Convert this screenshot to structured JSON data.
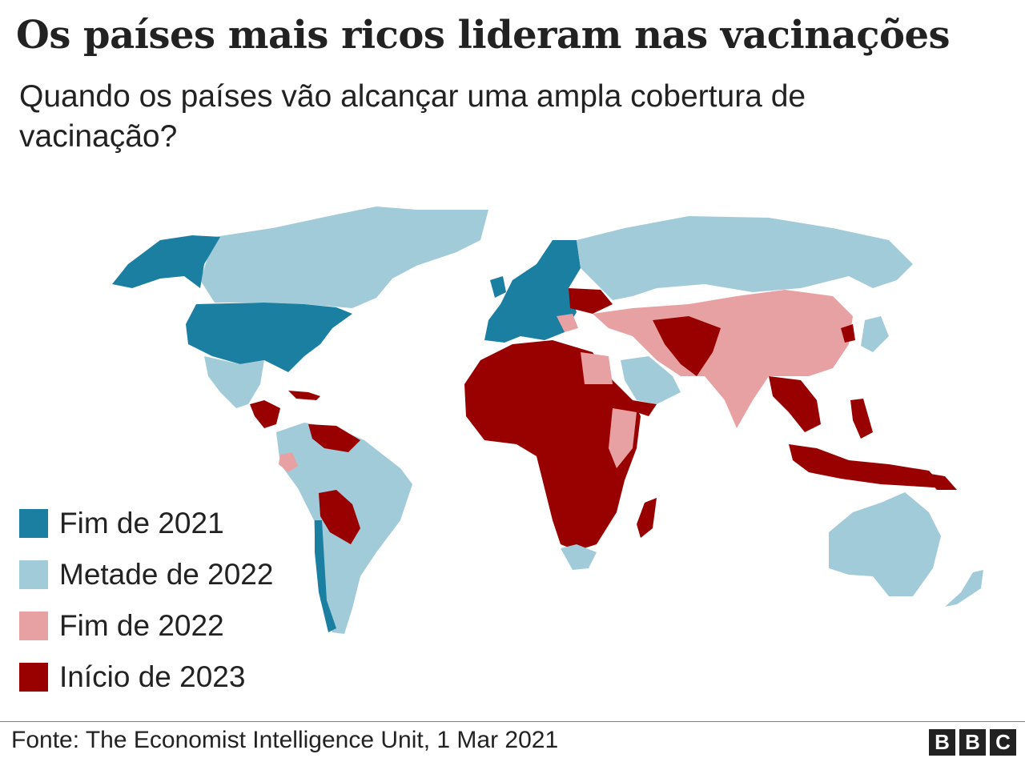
{
  "title": "Os países mais ricos lideram nas vacinações",
  "subtitle": "Quando os países vão alcançar uma ampla cobertura de vacinação?",
  "colors": {
    "fim_2021": "#1a7fa0",
    "metade_2022": "#a2cbd9",
    "fim_2022": "#e8a1a3",
    "inicio_2023": "#990000"
  },
  "legend": [
    {
      "label": "Fim de 2021",
      "color": "#1a7fa0"
    },
    {
      "label": "Metade de 2022",
      "color": "#a2cbd9"
    },
    {
      "label": "Fim de 2022",
      "color": "#e8a1a3"
    },
    {
      "label": "Início de 2023",
      "color": "#990000"
    }
  ],
  "source": "Fonte: The Economist Intelligence Unit, 1 Mar 2021",
  "logo": [
    "B",
    "B",
    "C"
  ]
}
